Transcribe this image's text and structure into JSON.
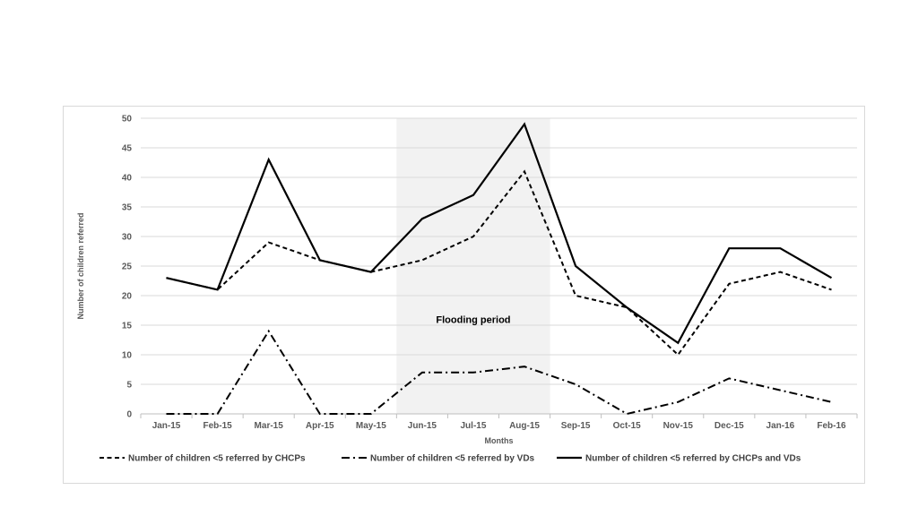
{
  "chart_data": {
    "type": "line",
    "title": "",
    "xlabel": "Months",
    "ylabel": "Number of children referred",
    "ylim": [
      0,
      50
    ],
    "yticks": [
      0,
      5,
      10,
      15,
      20,
      25,
      30,
      35,
      40,
      45,
      50
    ],
    "grid": "horizontal",
    "legend_position": "bottom",
    "categories": [
      "Jan-15",
      "Feb-15",
      "Mar-15",
      "Apr-15",
      "May-15",
      "Jun-15",
      "Jul-15",
      "Aug-15",
      "Sep-15",
      "Oct-15",
      "Nov-15",
      "Dec-15",
      "Jan-16",
      "Feb-16"
    ],
    "shaded_region": {
      "from": "Jun-15",
      "to": "Aug-15",
      "label": "Flooding period",
      "color": "#f2f2f2"
    },
    "series": [
      {
        "name": "Number of children <5 referred by CHCPs",
        "style": "dashed",
        "color": "#000000",
        "values": [
          23,
          21,
          29,
          26,
          24,
          26,
          30,
          41,
          20,
          18,
          10,
          22,
          24,
          21
        ]
      },
      {
        "name": "Number of children <5 referred by VDs",
        "style": "dash-dot",
        "color": "#000000",
        "values": [
          0,
          0,
          14,
          0,
          0,
          7,
          7,
          8,
          5,
          0,
          2,
          6,
          4,
          2
        ]
      },
      {
        "name": "Number of children <5 referred by CHCPs and VDs",
        "style": "solid",
        "color": "#000000",
        "values": [
          23,
          21,
          43,
          26,
          24,
          33,
          37,
          49,
          25,
          18,
          12,
          28,
          28,
          23
        ]
      }
    ]
  }
}
